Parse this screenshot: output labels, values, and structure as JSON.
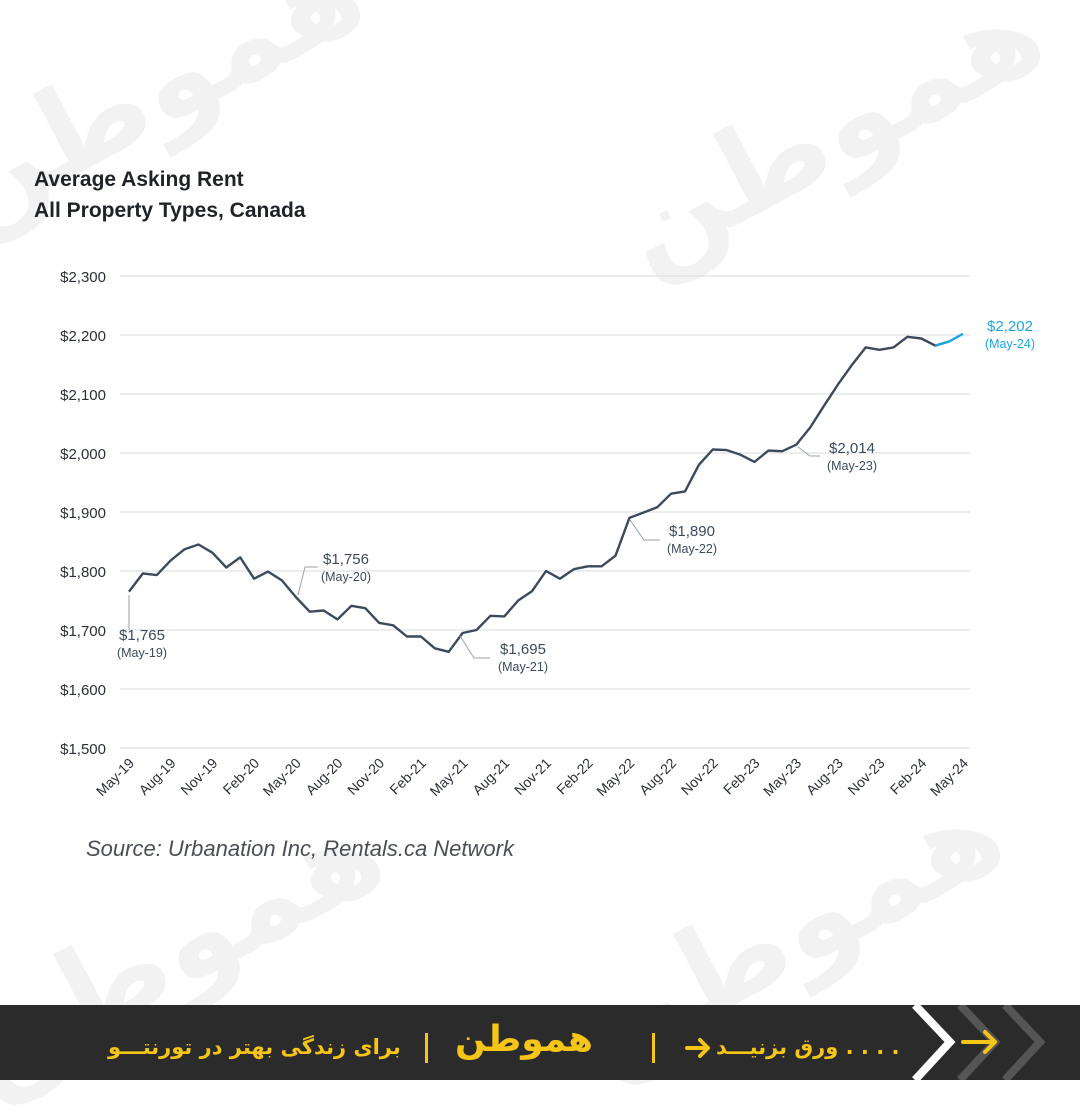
{
  "chart_data": {
    "type": "line",
    "title": "Average Asking Rent",
    "subtitle": "All Property Types, Canada",
    "ylim": [
      1500,
      2300
    ],
    "y_ticks": [
      "$1,500",
      "$1,600",
      "$1,700",
      "$1,800",
      "$1,900",
      "$2,000",
      "$2,100",
      "$2,200",
      "$2,300"
    ],
    "x_ticks": [
      "May-19",
      "Aug-19",
      "Nov-19",
      "Feb-20",
      "May-20",
      "Aug-20",
      "Nov-20",
      "Feb-21",
      "May-21",
      "Aug-21",
      "Nov-21",
      "Feb-22",
      "May-22",
      "Aug-22",
      "Nov-22",
      "Feb-23",
      "May-23",
      "Aug-23",
      "Nov-23",
      "Feb-24",
      "May-24"
    ],
    "grid": true,
    "series": [
      {
        "x": [
          "2019-05",
          "2019-06",
          "2019-07",
          "2019-08",
          "2019-09",
          "2019-10",
          "2019-11",
          "2019-12",
          "2020-01",
          "2020-02",
          "2020-03",
          "2020-04",
          "2020-05",
          "2020-06",
          "2020-07",
          "2020-08",
          "2020-09",
          "2020-10",
          "2020-11",
          "2020-12",
          "2021-01",
          "2021-02",
          "2021-03",
          "2021-04",
          "2021-05",
          "2021-06",
          "2021-07",
          "2021-08",
          "2021-09",
          "2021-10",
          "2021-11",
          "2021-12",
          "2022-01",
          "2022-02",
          "2022-03",
          "2022-04",
          "2022-05",
          "2022-06",
          "2022-07",
          "2022-08",
          "2022-09",
          "2022-10",
          "2022-11",
          "2022-12",
          "2023-01",
          "2023-02",
          "2023-03",
          "2023-04",
          "2023-05",
          "2023-06",
          "2023-07",
          "2023-08",
          "2023-09",
          "2023-10",
          "2023-11",
          "2023-12",
          "2024-01",
          "2024-02",
          "2024-03",
          "2024-04",
          "2024-05"
        ],
        "values": [
          1765,
          1796,
          1793,
          1818,
          1837,
          1845,
          1831,
          1806,
          1823,
          1787,
          1799,
          1784,
          1756,
          1731,
          1733,
          1718,
          1741,
          1737,
          1712,
          1708,
          1689,
          1689,
          1669,
          1663,
          1695,
          1700,
          1724,
          1723,
          1750,
          1766,
          1800,
          1787,
          1803,
          1808,
          1808,
          1826,
          1890,
          1899,
          1908,
          1931,
          1935,
          1980,
          2006,
          2005,
          1997,
          1985,
          2004,
          2003,
          2014,
          2043,
          2080,
          2116,
          2149,
          2179,
          2175,
          2179,
          2197,
          2194,
          2182,
          2189,
          2202
        ],
        "color": "#3c4a5c",
        "last_segment_color": "#1aa7e0"
      }
    ],
    "annotations": [
      {
        "value": "$1,765",
        "date": "(May-19)"
      },
      {
        "value": "$1,756",
        "date": "(May-20)"
      },
      {
        "value": "$1,695",
        "date": "(May-21)"
      },
      {
        "value": "$1,890",
        "date": "(May-22)"
      },
      {
        "value": "$2,014",
        "date": "(May-23)"
      },
      {
        "value": "$2,202",
        "date": "(May-24)",
        "color": "#1aa7e0"
      }
    ],
    "source": "Source: Urbanation Inc, Rentals.ca Network"
  },
  "footer": {
    "brand": "همو‌طن",
    "tagline": "برای زندگی بهتر در تورنتـــو",
    "swipe": "ورق بزنیـــد . . . .",
    "background": "#2b2b2b",
    "accent": "#f5c518"
  },
  "watermark_text": "همو‌طن"
}
